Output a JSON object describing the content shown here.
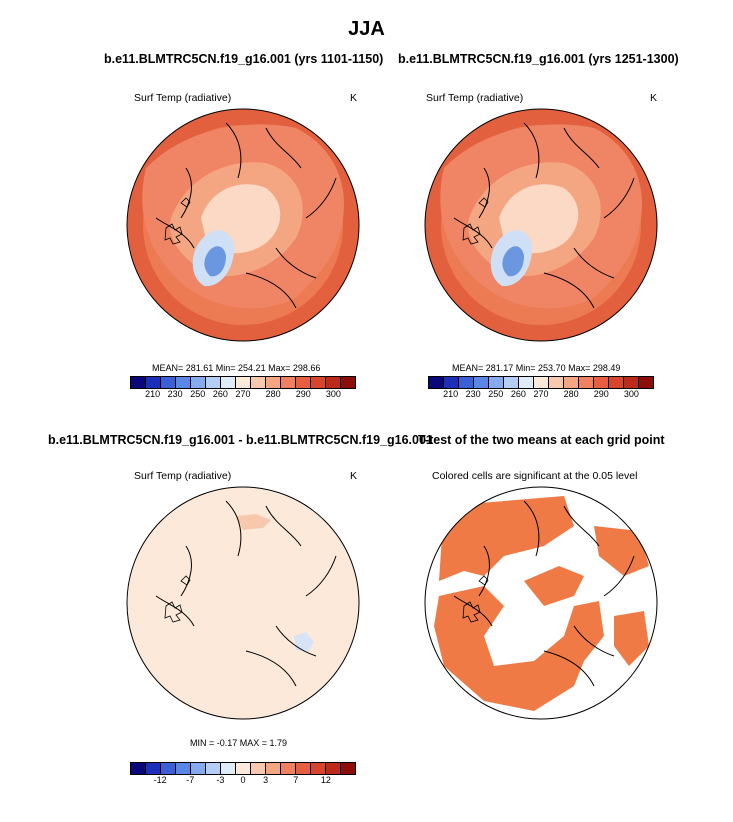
{
  "main_title": "JJA",
  "panels": {
    "top_left": {
      "title": "b.e11.BLMTRC5CN.f19_g16.001 (yrs 1101-1150)",
      "variable": "Surf Temp (radiative)",
      "units": "K",
      "stats": "MEAN= 281.61  Min= 254.21  Max= 298.66"
    },
    "top_right": {
      "title": "b.e11.BLMTRC5CN.f19_g16.001 (yrs 1251-1300)",
      "variable": "Surf Temp (radiative)",
      "units": "K",
      "stats": "MEAN= 281.17  Min= 253.70  Max= 298.49"
    },
    "bottom_left": {
      "title": "b.e11.BLMTRC5CN.f19_g16.001 - b.e11.BLMTRC5CN.f19_g16.001",
      "variable": "Surf Temp (radiative)",
      "units": "K",
      "stats": "MIN =  -0.17 MAX =   1.79"
    },
    "bottom_right": {
      "title": "T-test of the two means at each grid point",
      "subtitle": "Colored cells are significant at the 0.05 level"
    }
  },
  "colorbars": {
    "abs": {
      "labels": [
        "210",
        "230",
        "250",
        "260",
        "270",
        "280",
        "290",
        "300"
      ],
      "colors": [
        "#08087a",
        "#1c2fb8",
        "#3a5fd6",
        "#5a86e6",
        "#85aaee",
        "#b4cdf4",
        "#e0ebf8",
        "#fde9d9",
        "#f8c8ae",
        "#f4a582",
        "#ef8060",
        "#e75f40",
        "#d8452a",
        "#bb2a1a",
        "#8b0e08"
      ]
    },
    "diff": {
      "labels": [
        "-12",
        "-7",
        "-3",
        "0",
        "3",
        "7",
        "12"
      ],
      "colors": [
        "#08087a",
        "#1c2fb8",
        "#3a5fd6",
        "#5a86e6",
        "#85aaee",
        "#b4cdf4",
        "#e0ebf8",
        "#fde9d9",
        "#f8c8ae",
        "#f4a582",
        "#ef8060",
        "#e75f40",
        "#d8452a",
        "#bb2a1a",
        "#8b0e08"
      ]
    }
  },
  "colors": {
    "warm_field": "#ec7a52",
    "outer_ring": "#e2603e",
    "mid_field": "#f4a582",
    "light_field": "#fbd9c4",
    "ice_field": "#cfe0f6",
    "ice_core": "#6b97e0",
    "diff_field": "#fde9d9",
    "signif": "#ef7a45"
  }
}
